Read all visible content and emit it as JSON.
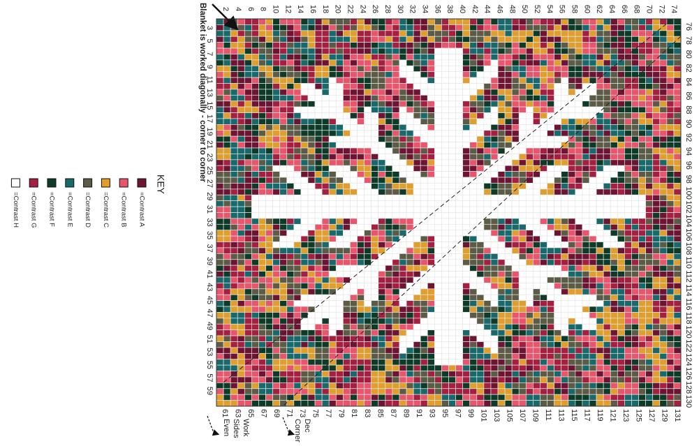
{
  "note": "Blanket is worked diagonally - corner to corner",
  "key": {
    "title": "KEY",
    "items": [
      {
        "label": "=Contrast A",
        "color": "#6d1433"
      },
      {
        "label": "=Contrast B",
        "color": "#e9566c"
      },
      {
        "label": "=Contrast C",
        "color": "#e09f2c"
      },
      {
        "label": "=Contrast D",
        "color": "#5b5b46"
      },
      {
        "label": "=Contrast E",
        "color": "#17696b"
      },
      {
        "label": "=Contrast F",
        "color": "#0d3b27"
      },
      {
        "label": "=Contrast G",
        "color": "#a52040"
      },
      {
        "label": "=Contrast H",
        "color": "#ffffff"
      }
    ]
  },
  "edge_labels": {
    "top": [
      2,
      4,
      6,
      8,
      10,
      12,
      14,
      16,
      18,
      20,
      22,
      24,
      26,
      28,
      30,
      32,
      34,
      36,
      38,
      40,
      42,
      44,
      46,
      48,
      50,
      52,
      54,
      56,
      58,
      60,
      62,
      64,
      66,
      68,
      70,
      72,
      74
    ],
    "right": [
      76,
      78,
      80,
      82,
      84,
      86,
      88,
      90,
      92,
      94,
      96,
      98,
      100,
      102,
      104,
      106,
      108,
      110,
      112,
      114,
      116,
      118,
      120,
      122,
      124,
      126,
      128,
      130
    ],
    "left": [
      3,
      5,
      7,
      9,
      11,
      13,
      15,
      17,
      19,
      21,
      23,
      25,
      27,
      29,
      31,
      33,
      35,
      37,
      39,
      41,
      43,
      45,
      47,
      49,
      51,
      53,
      55,
      57,
      59
    ],
    "bottom": [
      61,
      63,
      65,
      67,
      69,
      71,
      73,
      75,
      77,
      79,
      81,
      83,
      85,
      87,
      89,
      91,
      93,
      95,
      97,
      99,
      101,
      103,
      105,
      107,
      109,
      111,
      113,
      115,
      117,
      119,
      121,
      123,
      125,
      127,
      129,
      131
    ]
  },
  "annotations": {
    "work_sides_even": [
      "Work",
      "Sides",
      "Even"
    ],
    "dec_corner": [
      "Dec",
      "Corner"
    ]
  }
}
